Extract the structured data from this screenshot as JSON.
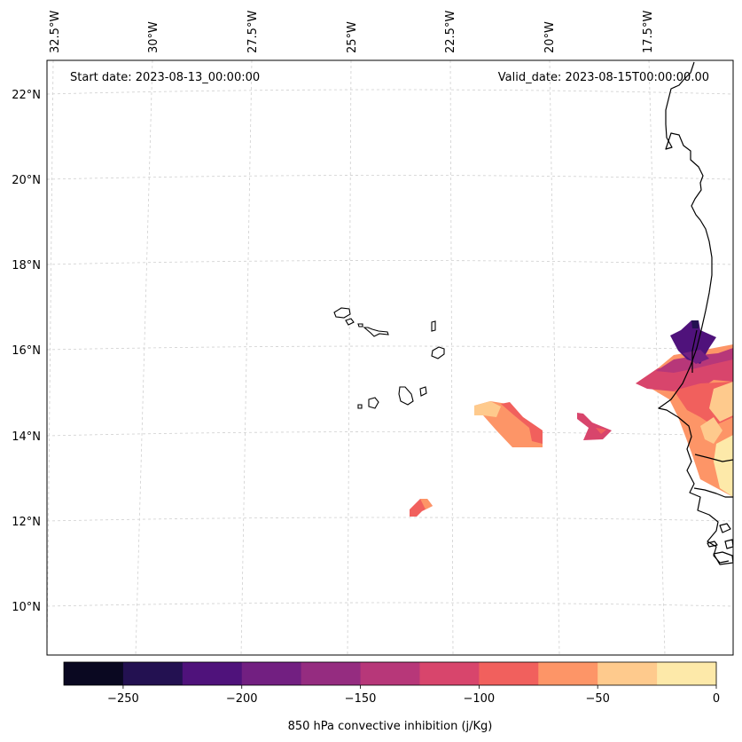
{
  "map": {
    "start_label": "Start date: 2023-08-13_00:00:00",
    "valid_label": "Valid_date: 2023-08-15T00:00:00.00",
    "longitude_labels": [
      "32.5°W",
      "30°W",
      "27.5°W",
      "25°W",
      "22.5°W",
      "20°W",
      "17.5°W"
    ],
    "latitude_labels": [
      "22°N",
      "20°N",
      "18°N",
      "16°N",
      "14°N",
      "12°N",
      "10°N"
    ],
    "features": [
      "Cape Verde Islands",
      "West African coastline (Mauritania, Senegal, Gambia, Guinea-Bissau)"
    ]
  },
  "colorbar": {
    "label": "850 hPa convective inhibition (j/Kg)",
    "vmin": -275,
    "vmax": 0,
    "boundaries": [
      -275,
      -250,
      -225,
      -200,
      -175,
      -150,
      -125,
      -100,
      -75,
      -50,
      -25,
      0
    ],
    "colors": [
      "#0a0821",
      "#231151",
      "#4f127b",
      "#721f81",
      "#952c80",
      "#b73779",
      "#d8456c",
      "#f1605d",
      "#fd9567",
      "#feca8d",
      "#fde9a9"
    ],
    "tick_values": [
      -250,
      -200,
      -150,
      -100,
      -50,
      0
    ],
    "tick_labels": [
      "−250",
      "−200",
      "−150",
      "−100",
      "−50",
      "0"
    ]
  },
  "chart_data": {
    "type": "heatmap",
    "title": "",
    "variable": "850 hPa convective inhibition",
    "units": "j/Kg",
    "levels": [
      -275,
      -250,
      -225,
      -200,
      -175,
      -150,
      -125,
      -100,
      -75,
      -50,
      -25,
      0
    ],
    "x_axis": "longitude",
    "y_axis": "latitude",
    "xticks": [
      "32.5°W",
      "30°W",
      "27.5°W",
      "25°W",
      "22.5°W",
      "20°W",
      "17.5°W"
    ],
    "yticks": [
      "22°N",
      "20°N",
      "18°N",
      "16°N",
      "14°N",
      "12°N",
      "10°N"
    ],
    "regions": [
      {
        "name": "senegal-coast-core",
        "min_value_bin": [
          -225,
          -200
        ],
        "description": "strong inhibition near 16-16.5°N at the coast"
      },
      {
        "name": "senegal-coast-band",
        "value_range": [
          -150,
          -25
        ]
      },
      {
        "name": "offshore-patch-14.5N-21W",
        "value_range": [
          -125,
          -25
        ]
      },
      {
        "name": "offshore-patch-14N-19W",
        "value_range": [
          -150,
          -75
        ]
      },
      {
        "name": "offshore-patch-12.5N-23W",
        "value_range": [
          -100,
          -75
        ]
      },
      {
        "name": "guinea-coast-south",
        "value_range": [
          -25,
          0
        ]
      }
    ]
  }
}
